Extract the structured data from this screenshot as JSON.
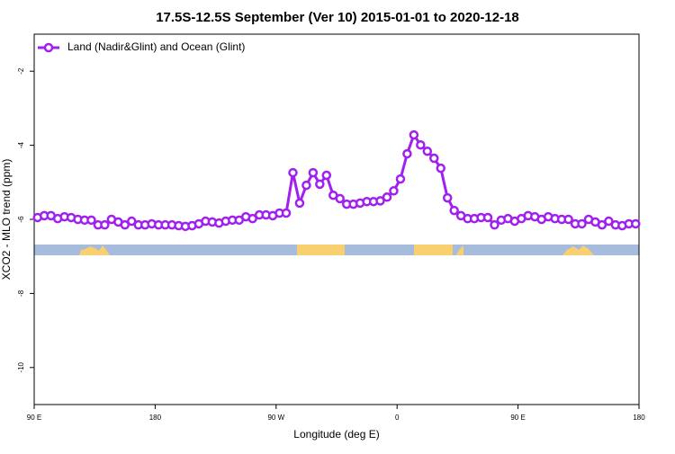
{
  "chart_data": {
    "type": "line",
    "title": "17.5S-12.5S September (Ver 10)   2015-01-01 to 2020-12-18",
    "x_label": "Longitude (deg E)",
    "y_label": "XCO2 - MLO trend (ppm)",
    "xlim": [
      90,
      540
    ],
    "xticks": [
      {
        "value": 90,
        "label": "90 E"
      },
      180,
      {
        "value": 270,
        "label": "90 W"
      },
      {
        "value": 360,
        "label": "0"
      },
      {
        "value": 450,
        "label": "90 E"
      },
      {
        "value": 540,
        "label": "180"
      }
    ],
    "ylim": [
      -11,
      -1
    ],
    "yticks": [
      -10,
      -8,
      -6,
      -4,
      -2
    ],
    "legend": "top-left",
    "x": [
      92.5,
      97.5,
      102.5,
      107.5,
      112.5,
      117.5,
      122.5,
      127.5,
      132.5,
      137.5,
      142.5,
      147.5,
      152.5,
      157.5,
      162.5,
      167.5,
      172.5,
      177.5,
      182.5,
      187.5,
      192.5,
      197.5,
      202.5,
      207.5,
      212.5,
      217.5,
      222.5,
      227.5,
      232.5,
      237.5,
      242.5,
      247.5,
      252.5,
      257.5,
      262.5,
      267.5,
      272.5,
      277.5,
      282.5,
      287.5,
      292.5,
      297.5,
      302.5,
      307.5,
      312.5,
      317.5,
      322.5,
      327.5,
      332.5,
      337.5,
      342.5,
      347.5,
      352.5,
      357.5,
      362.5,
      367.5,
      372.5,
      377.5,
      382.5,
      387.5,
      392.5,
      397.5,
      402.5,
      407.5,
      412.5,
      417.5,
      422.5,
      427.5,
      432.5,
      437.5,
      442.5,
      447.5,
      452.5,
      457.5,
      462.5,
      467.5,
      472.5,
      477.5,
      482.5,
      487.5,
      492.5,
      497.5,
      502.5,
      507.5,
      512.5,
      517.5,
      522.5,
      527.5,
      532.5,
      537.5
    ],
    "series": [
      {
        "name": "Land (Nadir&Glint) and Ocean (Glint)",
        "color": "#a020f0",
        "values": [
          -5.95,
          -5.9,
          -5.9,
          -5.98,
          -5.93,
          -5.95,
          -6.0,
          -6.02,
          -6.02,
          -6.15,
          -6.15,
          -6.0,
          -6.07,
          -6.15,
          -6.05,
          -6.15,
          -6.15,
          -6.12,
          -6.15,
          -6.15,
          -6.15,
          -6.17,
          -6.19,
          -6.17,
          -6.12,
          -6.05,
          -6.07,
          -6.1,
          -6.05,
          -6.02,
          -6.02,
          -5.93,
          -5.98,
          -5.88,
          -5.88,
          -5.9,
          -5.83,
          -5.83,
          -4.74,
          -5.56,
          -5.08,
          -4.74,
          -5.05,
          -4.81,
          -5.35,
          -5.44,
          -5.59,
          -5.59,
          -5.56,
          -5.52,
          -5.52,
          -5.5,
          -5.4,
          -5.23,
          -4.91,
          -4.23,
          -3.72,
          -3.99,
          -4.16,
          -4.35,
          -4.62,
          -5.42,
          -5.76,
          -5.9,
          -5.98,
          -5.98,
          -5.95,
          -5.95,
          -6.15,
          -6.02,
          -5.98,
          -6.05,
          -5.98,
          -5.9,
          -5.93,
          -6.0,
          -5.93,
          -5.98,
          -6.0,
          -6.0,
          -6.12,
          -6.12,
          -6.0,
          -6.07,
          -6.15,
          -6.05,
          -6.15,
          -6.17,
          -6.12,
          -6.12
        ]
      }
    ]
  }
}
